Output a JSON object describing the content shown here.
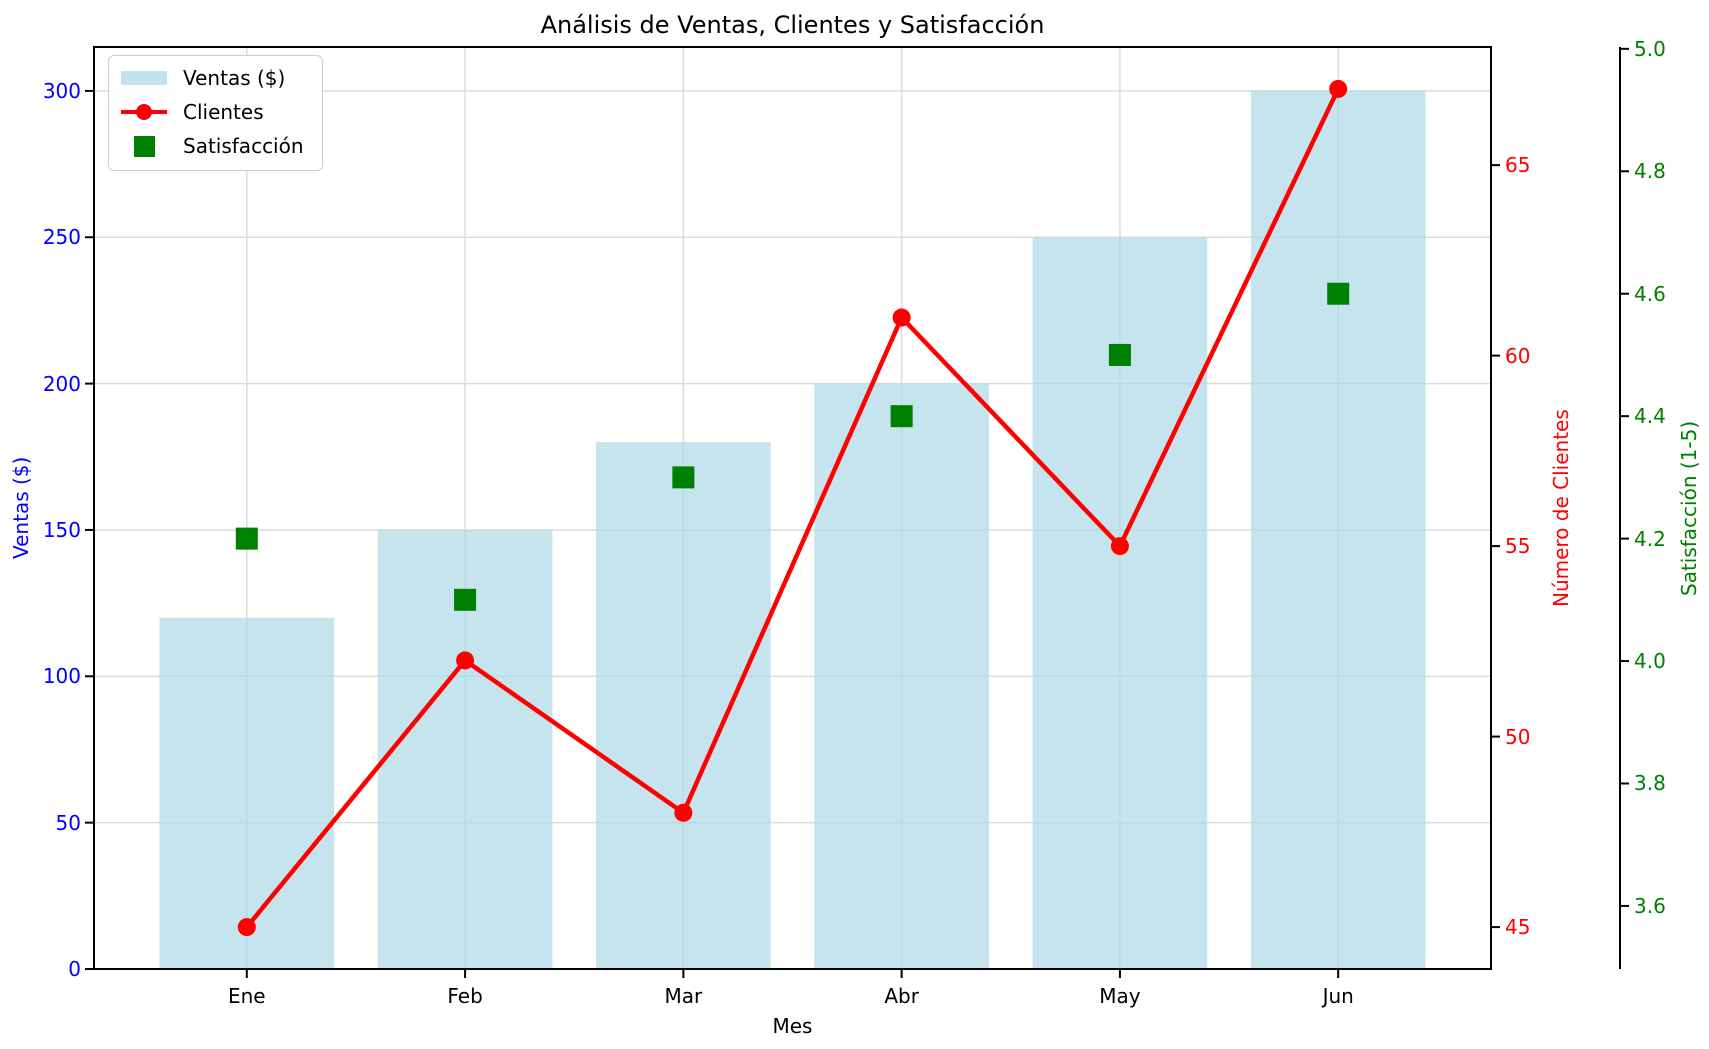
{
  "chart_data": {
    "type": "combo",
    "title": "Análisis de Ventas, Clientes y Satisfacción",
    "xlabel": "Mes",
    "categories": [
      "Ene",
      "Feb",
      "Mar",
      "Abr",
      "May",
      "Jun"
    ],
    "series": [
      {
        "name": "Ventas ($)",
        "type": "bar",
        "axis": "left",
        "color": "#ADD8E6",
        "opacity": 0.7,
        "values": [
          120,
          150,
          180,
          200,
          250,
          300
        ]
      },
      {
        "name": "Clientes",
        "type": "line",
        "axis": "right1",
        "color": "#FF0000",
        "marker": "circle",
        "values": [
          45,
          52,
          48,
          61,
          55,
          67
        ]
      },
      {
        "name": "Satisfacción",
        "type": "scatter",
        "axis": "right2",
        "color": "#008000",
        "marker": "square",
        "values": [
          4.2,
          4.1,
          4.3,
          4.4,
          4.5,
          4.6
        ]
      }
    ],
    "axes": {
      "left": {
        "label": "Ventas ($)",
        "color": "#0000FF",
        "range": [
          0,
          315
        ],
        "ticks": [
          0,
          50,
          100,
          150,
          200,
          250,
          300
        ],
        "tick_labels": [
          "0",
          "50",
          "100",
          "150",
          "200",
          "250",
          "300"
        ]
      },
      "right1": {
        "label": "Número de Clientes",
        "color": "#FF0000",
        "range": [
          43.9,
          68.1
        ],
        "ticks": [
          45,
          50,
          55,
          60,
          65
        ],
        "tick_labels": [
          "45",
          "50",
          "55",
          "60",
          "65"
        ]
      },
      "right2": {
        "label": "Satisfacción (1-5)",
        "color": "#008000",
        "range": [
          3.497,
          5.003
        ],
        "ticks": [
          3.6,
          3.8,
          4.0,
          4.2,
          4.4,
          4.6,
          4.8,
          5.0
        ],
        "tick_labels": [
          "3.6",
          "3.8",
          "4.0",
          "4.2",
          "4.4",
          "4.6",
          "4.8",
          "5.0"
        ]
      }
    },
    "legend": {
      "position": "upper-left",
      "items": [
        "Ventas ($)",
        "Clientes",
        "Satisfacción"
      ]
    },
    "grid": true
  }
}
